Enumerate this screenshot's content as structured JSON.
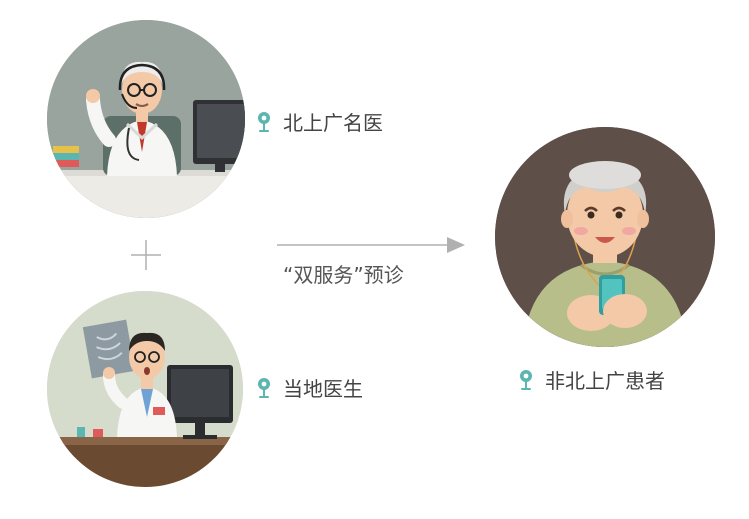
{
  "nodes": {
    "top_doctor": {
      "label": "北上广名医"
    },
    "local_doctor": {
      "label": "当地医生"
    },
    "patient": {
      "label": "非北上广患者"
    }
  },
  "connector": {
    "plus": "+"
  },
  "flow": {
    "caption": "“双服务”预诊"
  },
  "icons": {
    "pin": "map-pin-icon",
    "plus": "plus-icon",
    "arrow": "arrow-right-icon"
  },
  "colors": {
    "pin": "#5bb5b0",
    "text": "#444444",
    "line": "#b0b0b0",
    "patient_bg": "#5e5048"
  }
}
